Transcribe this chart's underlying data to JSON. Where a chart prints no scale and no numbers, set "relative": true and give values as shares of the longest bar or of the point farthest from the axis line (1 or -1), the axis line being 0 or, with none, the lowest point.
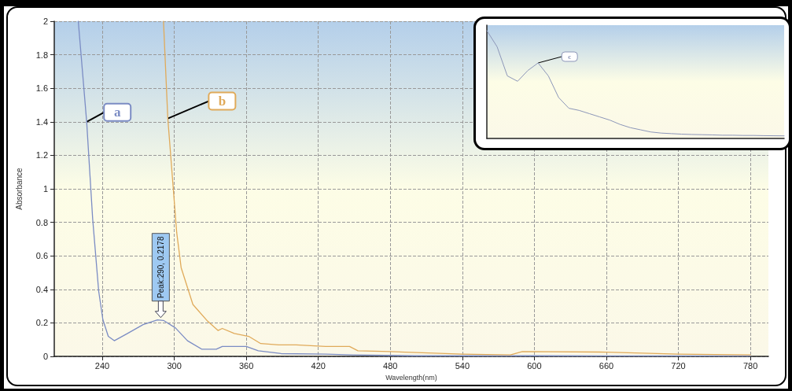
{
  "chart_data": [
    {
      "type": "line",
      "xlabel": "Wavelength(nm)",
      "ylabel": "Absorbance",
      "xlim": [
        200,
        795
      ],
      "xticks": [
        240,
        300,
        360,
        420,
        480,
        540,
        600,
        660,
        720,
        780
      ],
      "ylim": [
        0,
        2
      ],
      "yticks": [
        0,
        0.2,
        0.4,
        0.6,
        0.8,
        1,
        1.2,
        1.4,
        1.6,
        1.8,
        2
      ],
      "grid": true,
      "series": [
        {
          "name": "a",
          "color": "#7b8cc4",
          "x": [
            220,
            227,
            232,
            237,
            240.5,
            245,
            250,
            261,
            274,
            286,
            291,
            301,
            311,
            323,
            335,
            340,
            360,
            370,
            389,
            426,
            448,
            500,
            600,
            700,
            780
          ],
          "values": [
            2.0,
            1.4,
            0.82,
            0.39,
            0.22,
            0.12,
            0.094,
            0.137,
            0.19,
            0.218,
            0.215,
            0.17,
            0.094,
            0.043,
            0.043,
            0.06,
            0.06,
            0.034,
            0.017,
            0.014,
            0.009,
            0.004,
            0.004,
            0.003,
            0.003
          ]
        },
        {
          "name": "b",
          "color": "#e0aa5a",
          "x": [
            291,
            294.6,
            298.3,
            302,
            305.7,
            315.5,
            327.8,
            336.4,
            340,
            350,
            362,
            372,
            387,
            401.5,
            426,
            446,
            453,
            480,
            540,
            580,
            590,
            660,
            720,
            780
          ],
          "values": [
            2.0,
            1.42,
            1.08,
            0.74,
            0.53,
            0.31,
            0.21,
            0.155,
            0.167,
            0.137,
            0.12,
            0.077,
            0.069,
            0.069,
            0.06,
            0.06,
            0.034,
            0.029,
            0.014,
            0.009,
            0.029,
            0.026,
            0.014,
            0.009
          ]
        }
      ],
      "annotations": [
        {
          "text": "Peak:290, 0.2178",
          "x": 290,
          "y": 0.2178
        }
      ]
    },
    {
      "type": "line",
      "relative": true,
      "categories": [
        null,
        null,
        null,
        null,
        null,
        null,
        null,
        null,
        null,
        null,
        null,
        null,
        null,
        null,
        null,
        null,
        null,
        null,
        null,
        null,
        null,
        null,
        null,
        null,
        null,
        null,
        null,
        null,
        null,
        null
      ],
      "series": [
        {
          "name": "c",
          "color": "#8c96b8",
          "values": [
            1,
            0.85,
            0.58,
            0.53,
            0.63,
            0.7,
            0.58,
            0.38,
            0.28,
            0.26,
            0.23,
            0.2,
            0.17,
            0.13,
            0.1,
            0.08,
            0.06,
            0.05,
            0.045,
            0.04,
            0.037,
            0.035,
            0.033,
            0.03,
            0.03,
            0.028,
            0.028,
            0.026,
            0.025,
            0.024
          ]
        }
      ]
    }
  ]
}
